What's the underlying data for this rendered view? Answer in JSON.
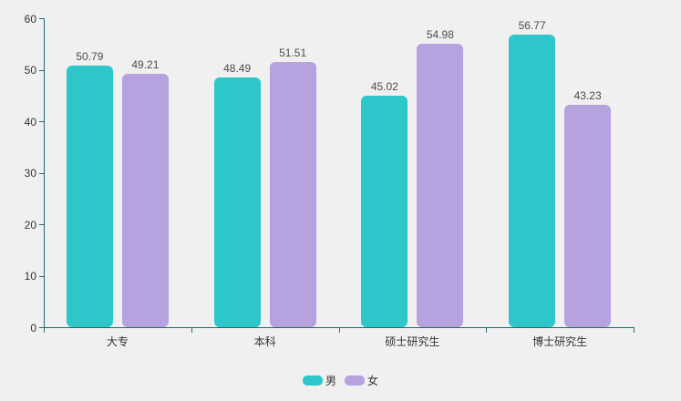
{
  "chart_data": {
    "type": "bar",
    "title": "",
    "categories": [
      "大专",
      "本科",
      "硕士研究生",
      "博士研究生"
    ],
    "series": [
      {
        "key": "male",
        "name": "男",
        "color": "#2ec7c9",
        "values": [
          50.79,
          48.49,
          45.02,
          56.77
        ]
      },
      {
        "key": "female",
        "name": "女",
        "color": "#b6a2de",
        "values": [
          49.21,
          51.51,
          54.98,
          43.23
        ]
      }
    ],
    "value_label_decimals": 2,
    "xlabel": "",
    "ylabel": "",
    "ylim": [
      0,
      60
    ],
    "yticks": [
      0,
      10,
      20,
      30,
      40,
      50,
      60
    ],
    "grid": false,
    "legend_position": "bottom-center",
    "colors": {
      "axis": "#1e6e73",
      "axis_label": "#333333",
      "value_label": "#4d4d4d",
      "background": "#f0f0f0"
    }
  }
}
